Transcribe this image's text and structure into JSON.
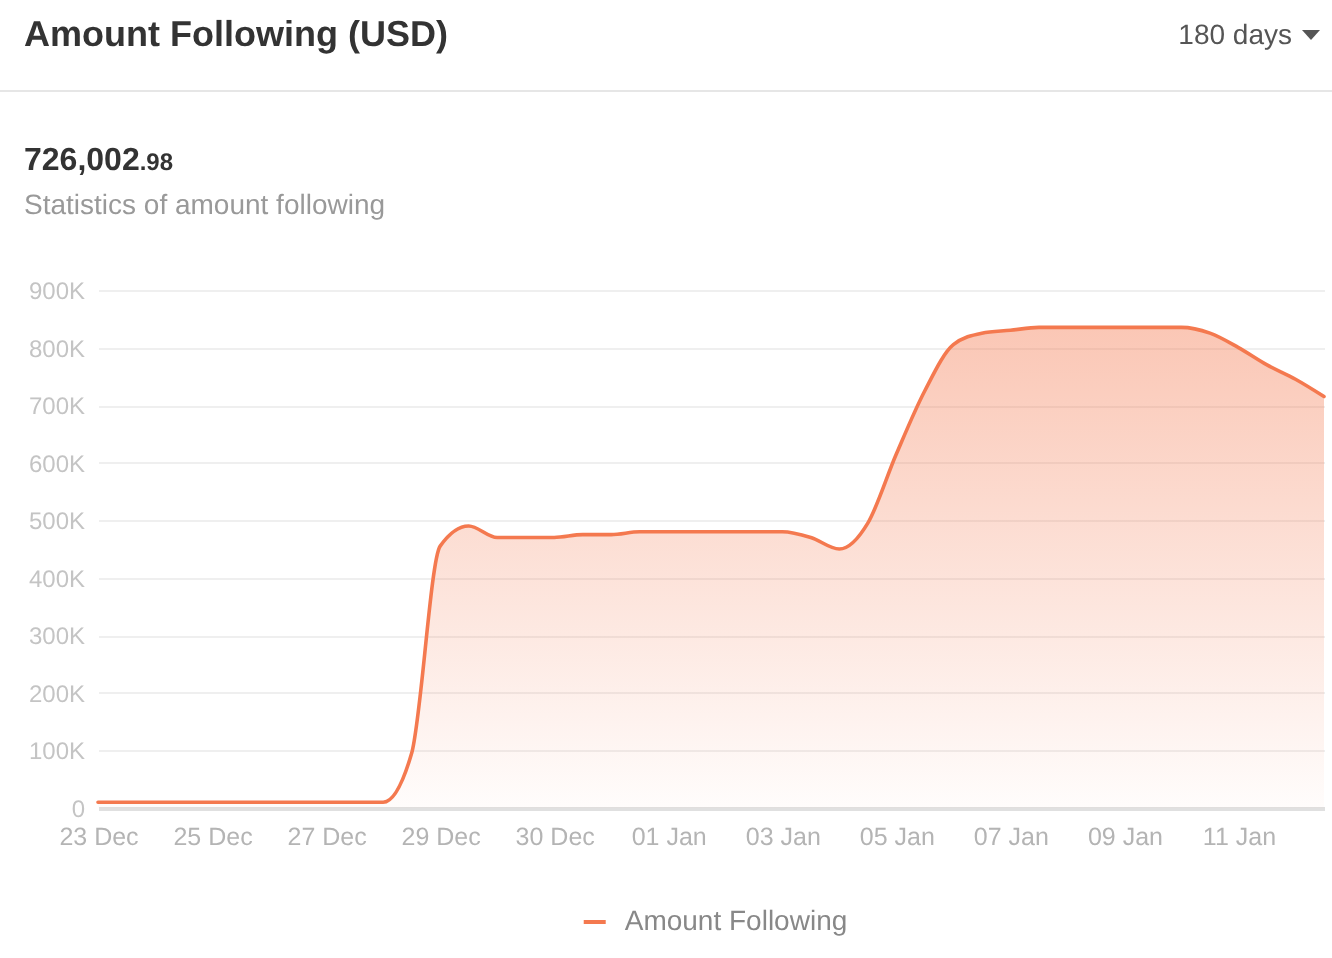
{
  "chart_data": {
    "type": "area",
    "title": "Amount Following (USD)",
    "subtitle": "Statistics of amount following",
    "annotations": [
      "180 days",
      "726,002.98"
    ],
    "categories": [
      "23 Dec",
      null,
      null,
      null,
      "25 Dec",
      null,
      null,
      null,
      "27 Dec",
      null,
      null,
      null,
      "29 Dec",
      null,
      null,
      null,
      "30 Dec",
      null,
      null,
      null,
      "01 Jan",
      null,
      null,
      null,
      "03 Jan",
      null,
      null,
      null,
      "05 Jan",
      null,
      null,
      null,
      "07 Jan",
      null,
      null,
      null,
      "09 Jan",
      null,
      null,
      null,
      "11 Jan",
      null,
      null,
      null
    ],
    "series": [
      {
        "name": "Amount Following",
        "color": "#f4794f",
        "values": [
          10000,
          10000,
          10000,
          10000,
          10000,
          10000,
          10000,
          10000,
          10000,
          10000,
          10000,
          95000,
          455000,
          490000,
          470000,
          470000,
          470000,
          475000,
          475000,
          480000,
          480000,
          480000,
          480000,
          480000,
          480000,
          470000,
          450000,
          495000,
          615000,
          725000,
          805000,
          825000,
          830000,
          835000,
          835000,
          835000,
          835000,
          835000,
          835000,
          825000,
          800000,
          770000,
          745000,
          715000
        ]
      }
    ],
    "ylim": [
      0,
      900000
    ],
    "yticks": [
      0,
      {
        "value": 100000,
        "label": "100K"
      },
      {
        "value": 200000,
        "label": "200K"
      },
      {
        "value": 300000,
        "label": "300K"
      },
      {
        "value": 400000,
        "label": "400K"
      },
      {
        "value": 500000,
        "label": "500K"
      },
      {
        "value": 600000,
        "label": "600K"
      },
      {
        "value": 700000,
        "label": "700K"
      },
      {
        "value": 800000,
        "label": "800K"
      },
      {
        "value": 900000,
        "label": "900K"
      }
    ],
    "grid": "y",
    "legend": "bottom"
  }
}
